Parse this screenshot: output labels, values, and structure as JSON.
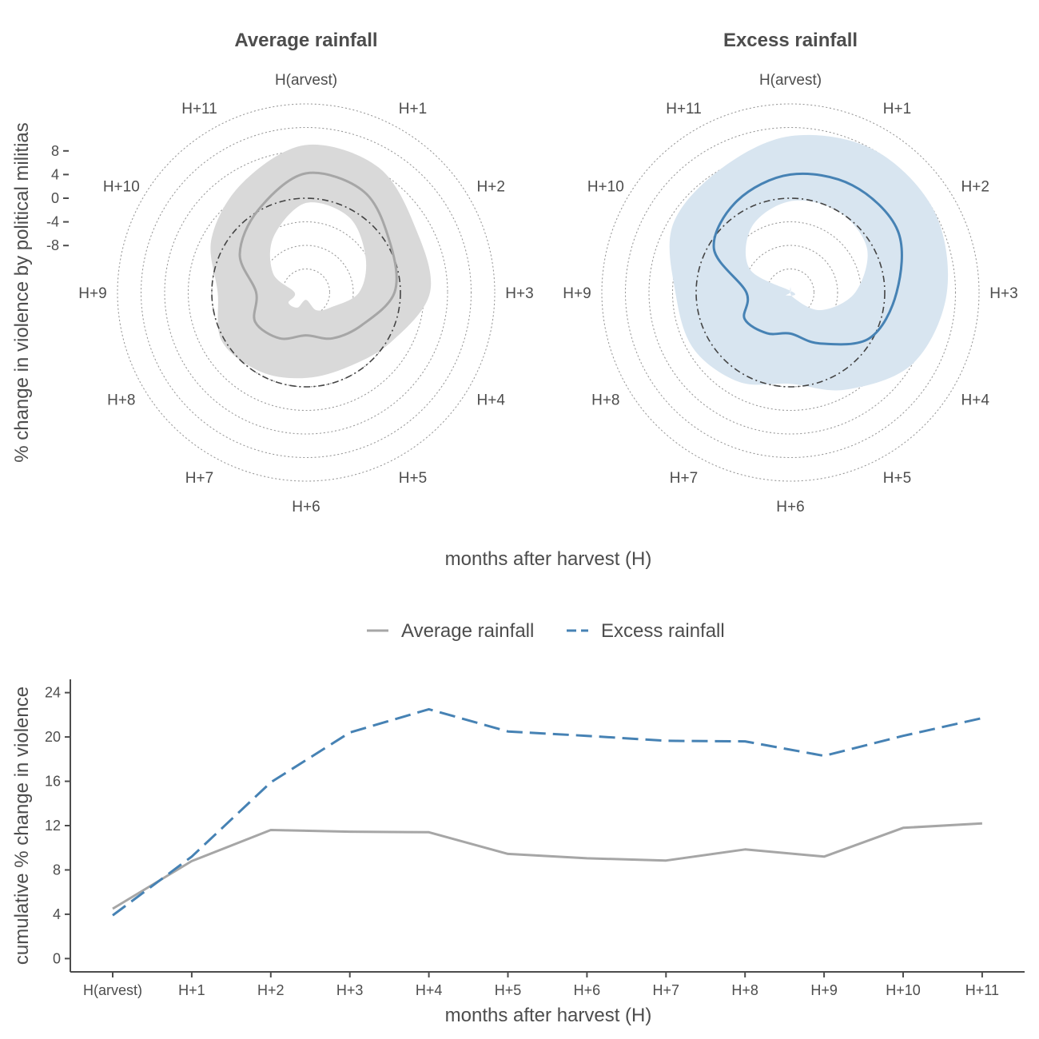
{
  "colors": {
    "average_line": "#a6a6a6",
    "average_ribbon": "#d9d9d9",
    "excess_line": "#4682b4",
    "excess_ribbon": "#d8e5f0",
    "grid": "#9a9a9a",
    "baseline": "#444444",
    "axis": "#4d4d4d"
  },
  "chart_data": [
    {
      "type": "line",
      "projection": "polar",
      "title": "Average rainfall",
      "ylabel": "% change in violence by political militias",
      "xlabel": "months after harvest (H)",
      "categories": [
        "H(arvest)",
        "H+1",
        "H+2",
        "H+3",
        "H+4",
        "H+5",
        "H+6",
        "H+7",
        "H+8",
        "H+9",
        "H+10",
        "H+11"
      ],
      "radial_ticks": [
        "8",
        "4",
        "0",
        "-4",
        "-8"
      ],
      "radial_tick_values": [
        8,
        4,
        0,
        -4,
        -8
      ],
      "reference_circle": 0,
      "series": [
        {
          "values": [
            4.2,
            3.7,
            0.5,
            -1,
            -5,
            -7,
            -8.7,
            -7,
            -6,
            -7.5,
            -3,
            0.2
          ],
          "lower": [
            -0.8,
            -1.3,
            -4.3,
            -7,
            -11,
            -12.5,
            -14.7,
            -13,
            -12.5,
            -14,
            -9.5,
            -5
          ],
          "upper": [
            9,
            8.5,
            5.5,
            5,
            0.7,
            -1.5,
            -1.5,
            -0.5,
            0.5,
            -1,
            2.5,
            5.5
          ]
        }
      ],
      "grid": true
    },
    {
      "type": "line",
      "projection": "polar",
      "title": "Excess rainfall",
      "categories": [
        "H(arvest)",
        "H+1",
        "H+2",
        "H+3",
        "H+4",
        "H+5",
        "H+6",
        "H+7",
        "H+8",
        "H+9",
        "H+10",
        "H+11"
      ],
      "reference_circle": 0,
      "series": [
        {
          "values": [
            4,
            5,
            5,
            2,
            -0.5,
            -6,
            -9,
            -8,
            -7,
            -8.5,
            -1,
            2
          ],
          "lower": [
            -0.5,
            0,
            -1,
            -5,
            -10,
            -15,
            -17,
            -16,
            -15,
            -16.5,
            -8,
            -3
          ],
          "upper": [
            10.5,
            12,
            12,
            10.5,
            8,
            3,
            -0.5,
            1.5,
            3,
            3.5,
            7,
            8
          ]
        }
      ],
      "grid": true
    },
    {
      "type": "line",
      "title": "",
      "xlabel": "months after harvest (H)",
      "ylabel": "cumulative % change in violence",
      "categories": [
        "H(arvest)",
        "H+1",
        "H+2",
        "H+3",
        "H+4",
        "H+5",
        "H+6",
        "H+7",
        "H+8",
        "H+9",
        "H+10",
        "H+11"
      ],
      "ylim": [
        -1.2,
        25.2
      ],
      "yticks": [
        0,
        4,
        8,
        12,
        16,
        20,
        24
      ],
      "legend_position": "top",
      "series": [
        {
          "name": "Average rainfall",
          "style": "solid",
          "values": [
            4.5,
            8.8,
            11.6,
            11.45,
            11.4,
            9.45,
            9.05,
            8.85,
            9.85,
            9.2,
            11.8,
            12.2
          ]
        },
        {
          "name": "Excess rainfall",
          "style": "dashed",
          "values": [
            3.9,
            9.2,
            15.9,
            20.4,
            22.5,
            20.5,
            20.1,
            19.65,
            19.6,
            18.3,
            20.1,
            21.7
          ]
        }
      ],
      "grid": false
    }
  ]
}
